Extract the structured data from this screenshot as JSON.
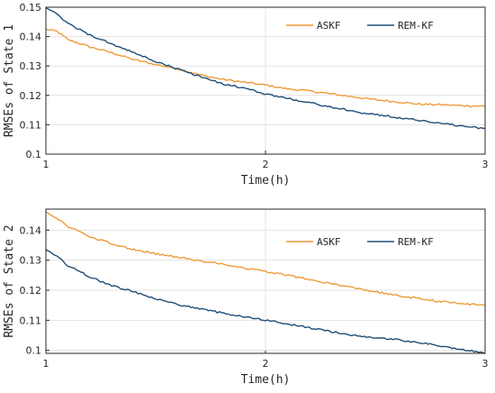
{
  "chart_data": [
    {
      "type": "line",
      "xlabel": "Time(h)",
      "ylabel": "RMSEs of State 1",
      "xlim": [
        1,
        3
      ],
      "ylim": [
        0.1,
        0.15
      ],
      "xticks": [
        "1",
        "2",
        "3"
      ],
      "yticks": [
        "0.1",
        "0.11",
        "0.12",
        "0.13",
        "0.14",
        "0.15"
      ],
      "grid": true,
      "legend_position": "top-right",
      "series": [
        {
          "name": "ASKF",
          "color": "#EE9A3A",
          "x": [
            1.0,
            1.05,
            1.1,
            1.2,
            1.3,
            1.4,
            1.5,
            1.6,
            1.7,
            1.8,
            1.9,
            2.0,
            2.1,
            2.2,
            2.3,
            2.4,
            2.5,
            2.6,
            2.7,
            2.8,
            2.9,
            3.0
          ],
          "values": [
            0.1425,
            0.1418,
            0.139,
            0.1365,
            0.1345,
            0.1322,
            0.1305,
            0.129,
            0.127,
            0.1255,
            0.1245,
            0.1235,
            0.1222,
            0.1215,
            0.1205,
            0.1195,
            0.1185,
            0.1178,
            0.117,
            0.1168,
            0.1165,
            0.1163
          ]
        },
        {
          "name": "REM-KF",
          "color": "#1F4E79",
          "x": [
            1.0,
            1.05,
            1.1,
            1.2,
            1.3,
            1.4,
            1.5,
            1.6,
            1.7,
            1.8,
            1.9,
            2.0,
            2.1,
            2.2,
            2.3,
            2.4,
            2.5,
            2.6,
            2.7,
            2.8,
            2.9,
            3.0
          ],
          "values": [
            0.15,
            0.1475,
            0.1445,
            0.1405,
            0.1375,
            0.1345,
            0.1315,
            0.129,
            0.1265,
            0.124,
            0.1225,
            0.1205,
            0.119,
            0.1175,
            0.116,
            0.1145,
            0.1135,
            0.1125,
            0.1115,
            0.1105,
            0.1095,
            0.1087
          ]
        }
      ]
    },
    {
      "type": "line",
      "xlabel": "Time(h)",
      "ylabel": "RMSEs of State 2",
      "xlim": [
        1,
        3
      ],
      "ylim": [
        0.099,
        0.147
      ],
      "xticks": [
        "1",
        "2",
        "3"
      ],
      "yticks": [
        "0.1",
        "0.11",
        "0.12",
        "0.13",
        "0.14"
      ],
      "grid": true,
      "legend_position": "top-right",
      "series": [
        {
          "name": "ASKF",
          "color": "#EE9A3A",
          "x": [
            1.0,
            1.05,
            1.1,
            1.2,
            1.3,
            1.4,
            1.5,
            1.6,
            1.7,
            1.8,
            1.9,
            2.0,
            2.1,
            2.2,
            2.3,
            2.4,
            2.5,
            2.6,
            2.7,
            2.8,
            2.9,
            3.0
          ],
          "values": [
            0.1462,
            0.144,
            0.1412,
            0.1378,
            0.1355,
            0.1335,
            0.1322,
            0.131,
            0.1298,
            0.1288,
            0.1275,
            0.1262,
            0.125,
            0.1235,
            0.1222,
            0.1208,
            0.1195,
            0.1182,
            0.1172,
            0.1162,
            0.1155,
            0.115
          ]
        },
        {
          "name": "REM-KF",
          "color": "#1F4E79",
          "x": [
            1.0,
            1.05,
            1.1,
            1.2,
            1.3,
            1.4,
            1.5,
            1.6,
            1.7,
            1.8,
            1.9,
            2.0,
            2.1,
            2.2,
            2.3,
            2.4,
            2.5,
            2.6,
            2.7,
            2.8,
            2.9,
            3.0
          ],
          "values": [
            0.1335,
            0.1315,
            0.1282,
            0.1245,
            0.1215,
            0.1195,
            0.1172,
            0.1152,
            0.1138,
            0.1125,
            0.1112,
            0.11,
            0.1088,
            0.1075,
            0.1062,
            0.105,
            0.1042,
            0.1035,
            0.1025,
            0.1015,
            0.1002,
            0.0992
          ]
        }
      ]
    }
  ]
}
